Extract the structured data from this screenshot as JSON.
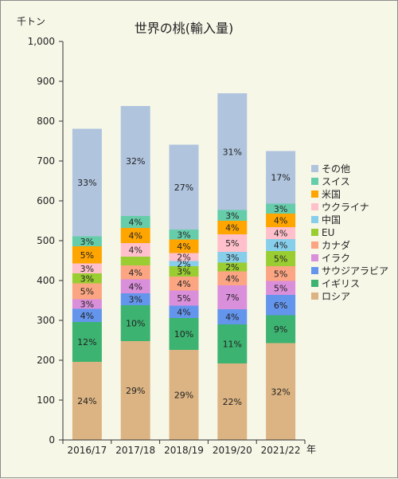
{
  "chart_data": {
    "type": "bar",
    "stacked": true,
    "title": "世界の桃(輸入量)",
    "ylabel": "千トン",
    "xlabel": "年",
    "ylim": [
      0,
      1000
    ],
    "yticks": [
      "0",
      "100",
      "200",
      "300",
      "400",
      "500",
      "600",
      "700",
      "800",
      "900",
      "1,000"
    ],
    "grid": false,
    "legend_position": "right",
    "categories": [
      "2016/17",
      "2017/18",
      "2018/19",
      "2019/20",
      "2021/22"
    ],
    "series": [
      {
        "name": "ロシア",
        "color": "#dcb483",
        "values": [
          196,
          248,
          226,
          192,
          243
        ],
        "labels": [
          "24%",
          "29%",
          "29%",
          "22%",
          "32%"
        ]
      },
      {
        "name": "イギリス",
        "color": "#3cb371",
        "values": [
          100,
          90,
          80,
          98,
          70
        ],
        "labels": [
          "12%",
          "10%",
          "10%",
          "11%",
          "9%"
        ]
      },
      {
        "name": "サウジアラビア",
        "color": "#6495ed",
        "values": [
          33,
          30,
          31,
          38,
          51
        ],
        "labels": [
          "4%",
          "3%",
          "4%",
          "4%",
          "6%"
        ]
      },
      {
        "name": "イラク",
        "color": "#da8fda",
        "values": [
          24,
          35,
          38,
          60,
          35
        ],
        "labels": [
          "3%",
          "4%",
          "5%",
          "7%",
          "5%"
        ]
      },
      {
        "name": "カナダ",
        "color": "#fba583",
        "values": [
          40,
          35,
          35,
          35,
          37
        ],
        "labels": [
          "5%",
          "4%",
          "4%",
          "4%",
          "5%"
        ]
      },
      {
        "name": "EU",
        "color": "#9acd32",
        "values": [
          25,
          22,
          26,
          22,
          38
        ],
        "labels": [
          "3%",
          "",
          "3%",
          "2%",
          "5%"
        ]
      },
      {
        "name": "中国",
        "color": "#87ceeb",
        "values": [
          0,
          0,
          13,
          27,
          30
        ],
        "labels": [
          "",
          "",
          "2%",
          "3%",
          "4%"
        ]
      },
      {
        "name": "ウクライナ",
        "color": "#ffc0cb",
        "values": [
          25,
          34,
          20,
          44,
          30
        ],
        "labels": [
          "3%",
          "4%",
          "2%",
          "5%",
          "4%"
        ]
      },
      {
        "name": "米国",
        "color": "#ffa500",
        "values": [
          43,
          38,
          34,
          34,
          34
        ],
        "labels": [
          "5%",
          "4%",
          "4%",
          "4%",
          "4%"
        ]
      },
      {
        "name": "スイス",
        "color": "#66cdaa",
        "values": [
          25,
          30,
          25,
          27,
          25
        ],
        "labels": [
          "3%",
          "4%",
          "3%",
          "3%",
          "3%"
        ]
      },
      {
        "name": "その他",
        "color": "#b0c4de",
        "values": [
          270,
          276,
          213,
          293,
          132
        ],
        "labels": [
          "33%",
          "32%",
          "27%",
          "31%",
          "17%"
        ]
      }
    ]
  }
}
